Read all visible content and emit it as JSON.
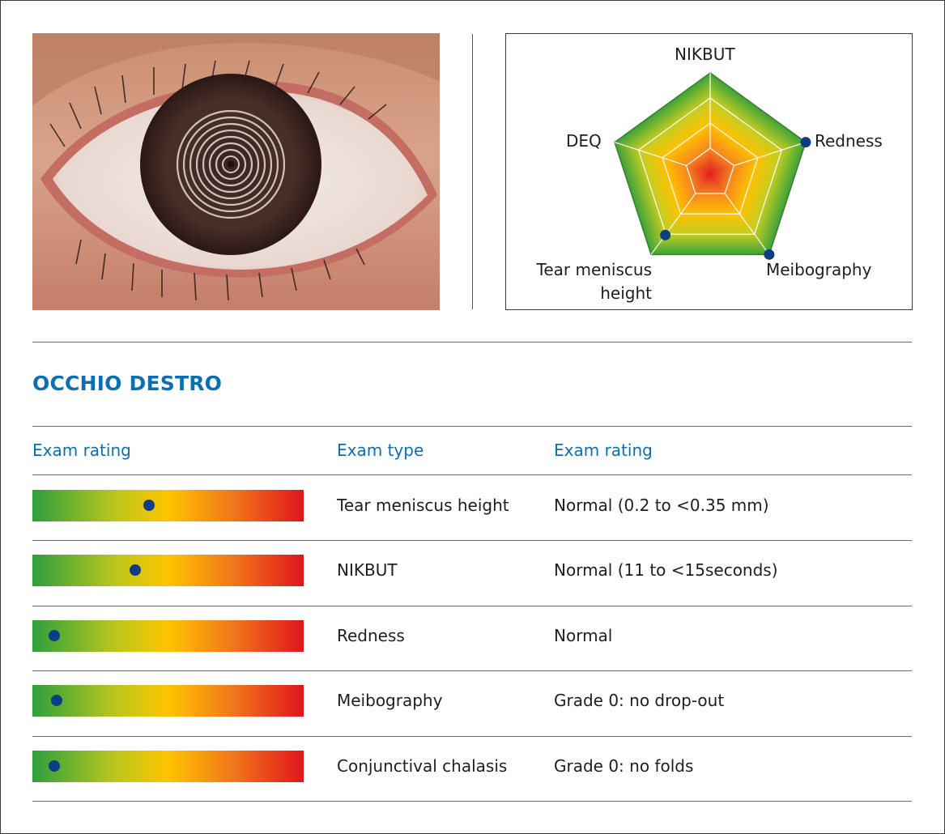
{
  "radar": {
    "axes": [
      "NIKBUT",
      "Redness",
      "Meibography",
      "Tear meniscus height",
      "DEQ"
    ],
    "label_nikbut": "NIKBUT",
    "label_redness": "Redness",
    "label_meibography": "Meibography",
    "label_tear_line1": "Tear meniscus",
    "label_tear_line2": "height",
    "label_deq": "DEQ",
    "marker_values": {
      "Redness": 1.0,
      "Meibography": 1.0,
      "Tear meniscus height": 0.76
    },
    "ring_colors": [
      "#47a638",
      "#c5cd22",
      "#ffc000",
      "#f6871f",
      "#e52420"
    ]
  },
  "section": {
    "title": "OCCHIO DESTRO"
  },
  "table": {
    "headers": [
      "Exam rating",
      "Exam type",
      "Exam rating"
    ],
    "rows": [
      {
        "type": "Tear meniscus height",
        "rating": "Normal (0.2 to <0.35 mm)",
        "position": 0.43
      },
      {
        "type": "NIKBUT",
        "rating": "Normal (11 to <15seconds)",
        "position": 0.38
      },
      {
        "type": "Redness",
        "rating": "Normal",
        "position": 0.08
      },
      {
        "type": "Meibography",
        "rating": "Grade 0: no drop-out",
        "position": 0.09
      },
      {
        "type": "Conjunctival chalasis",
        "rating": "Grade 0: no folds",
        "position": 0.08
      }
    ]
  },
  "colors": {
    "accent": "#0b6fb4",
    "marker": "#0c3d85"
  }
}
